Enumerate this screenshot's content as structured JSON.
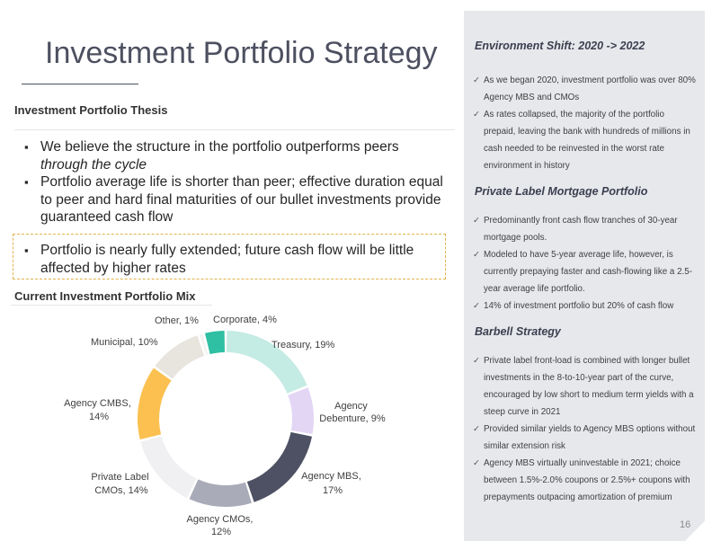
{
  "slide": {
    "title": "Investment Portfolio Strategy",
    "page_number": "16"
  },
  "thesis": {
    "heading": "Investment Portfolio Thesis",
    "bullet1_main": "We believe the structure in the portfolio outperforms peers",
    "bullet1_italic": "through the cycle",
    "bullet2": "Portfolio average life is shorter than peer; effective duration equal to peer and hard final maturities of our bullet investments provide guaranteed cash flow",
    "bullet3": "Portfolio is nearly fully extended; future cash flow will be little affected by higher rates"
  },
  "mix": {
    "heading": "Current Investment Portfolio Mix"
  },
  "chart_data": {
    "type": "pie",
    "donut": true,
    "slices": [
      {
        "label": "Treasury, 19%",
        "value": 19,
        "color": "#c4ebe4"
      },
      {
        "label": "Agency Debenture, 9%",
        "value": 9,
        "color": "#e3d6f5"
      },
      {
        "label": "Agency MBS, 17%",
        "value": 17,
        "color": "#4d5163"
      },
      {
        "label": "Agency CMOs, 12%",
        "value": 12,
        "color": "#a9abb8"
      },
      {
        "label": "Private Label CMOs, 14%",
        "value": 14,
        "color": "#f0f0f3"
      },
      {
        "label": "Agency CMBS, 14%",
        "value": 14,
        "color": "#fbc04f"
      },
      {
        "label": "Municipal, 10%",
        "value": 10,
        "color": "#e8e4de"
      },
      {
        "label": "Other, 1%",
        "value": 1,
        "color": "#f3f3f3"
      },
      {
        "label": "Corporate, 4%",
        "value": 4,
        "color": "#2fbfa3"
      }
    ],
    "label_lines": {
      "treasury": [
        "Treasury, 19%"
      ],
      "debenture": [
        "Agency",
        "Debenture, 9%"
      ],
      "mbs": [
        "Agency MBS,",
        "17%"
      ],
      "cmos": [
        "Agency CMOs,",
        "12%"
      ],
      "pl_cmos": [
        "Private Label",
        "CMOs, 14%"
      ],
      "cmbs": [
        "Agency CMBS,",
        "14%"
      ],
      "municipal": [
        "Municipal, 10%"
      ],
      "other": [
        "Other, 1%"
      ],
      "corporate": [
        "Corporate, 4%"
      ]
    }
  },
  "panel": {
    "section1": {
      "heading": "Environment Shift: 2020 -> 2022",
      "items": [
        "As we began 2020, investment portfolio was over 80% Agency MBS and CMOs",
        "As rates collapsed, the majority of the portfolio prepaid, leaving the bank with hundreds of millions in cash needed to be reinvested in the worst rate environment in history"
      ]
    },
    "section2": {
      "heading": "Private Label Mortgage Portfolio",
      "items": [
        "Predominantly front cash flow tranches of 30-year mortgage pools.",
        "Modeled to have 5-year average life, however, is currently prepaying faster and cash-flowing like a 2.5-year average life portfolio.",
        "14% of investment portfolio but 20% of cash flow"
      ]
    },
    "section3": {
      "heading": "Barbell Strategy",
      "items": [
        "Private label front-load is combined with longer bullet investments in the 8-to-10-year part of the curve, encouraged by low short to medium term yields with a steep curve in 2021",
        "Provided similar yields to Agency MBS options without similar extension risk",
        "Agency MBS virtually uninvestable in 2021; choice between 1.5%-2.0% coupons or 2.5%+ coupons with prepayments outpacing amortization of premium"
      ]
    }
  }
}
